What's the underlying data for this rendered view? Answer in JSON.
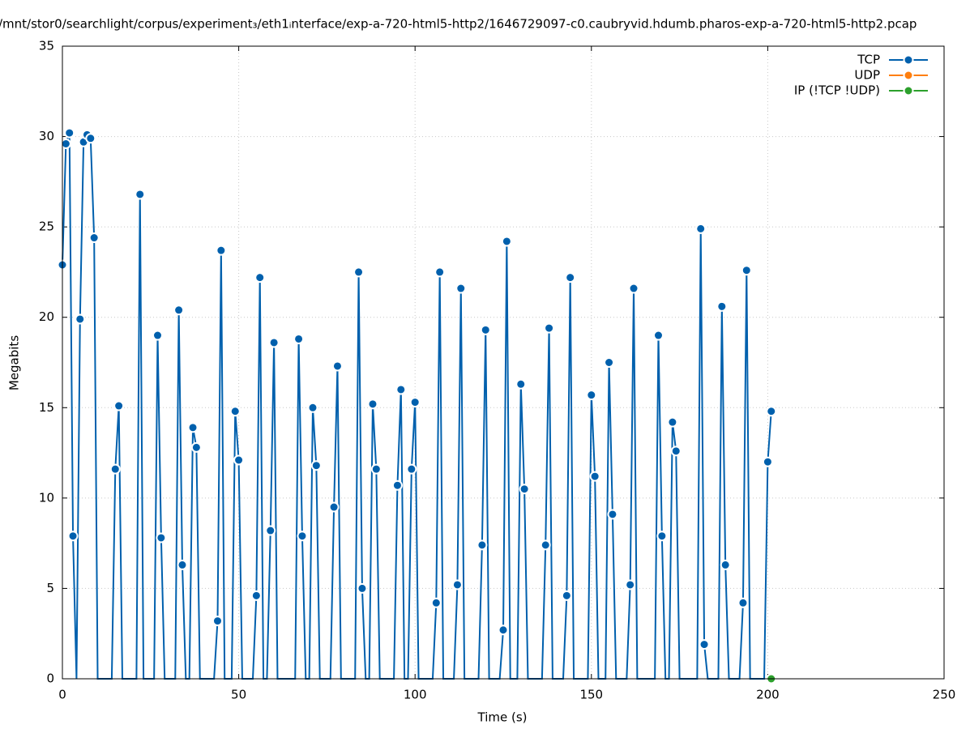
{
  "chart_data": {
    "type": "line",
    "title": "/mnt/stor0/searchlight/corpus/experiment₃/eth1ᵢnterface/exp-a-720-html5-http2/1646729097-c0.caubryvid.hdumb.pharos-exp-a-720-html5-http2.pcap",
    "x_label": "Time (s)",
    "y_label": "Megabits",
    "xlim": [
      0,
      250
    ],
    "xticks": [
      0,
      50,
      100,
      150,
      200,
      250
    ],
    "ylim": [
      0,
      35
    ],
    "yticks": [
      0,
      5,
      10,
      15,
      20,
      25,
      30,
      35
    ],
    "grid": true,
    "legend": "top-right",
    "series": [
      {
        "name": "TCP",
        "color": "#0060ad",
        "x": [
          0,
          1,
          2,
          3,
          4,
          5,
          6,
          7,
          8,
          9,
          10,
          14,
          15,
          16,
          17,
          21,
          22,
          23,
          26,
          27,
          28,
          29,
          32,
          33,
          34,
          35,
          36,
          37,
          38,
          39,
          43,
          44,
          45,
          46,
          48,
          49,
          50,
          51,
          54,
          55,
          56,
          57,
          58,
          59,
          60,
          61,
          66,
          67,
          68,
          69,
          70,
          71,
          72,
          73,
          76,
          77,
          78,
          79,
          83,
          84,
          85,
          86,
          87,
          88,
          89,
          90,
          94,
          95,
          96,
          97,
          98,
          99,
          100,
          101,
          105,
          106,
          107,
          108,
          111,
          112,
          113,
          114,
          118,
          119,
          120,
          121,
          124,
          125,
          126,
          127,
          129,
          130,
          131,
          132,
          136,
          137,
          138,
          139,
          142,
          143,
          144,
          145,
          149,
          150,
          151,
          152,
          154,
          155,
          156,
          157,
          160,
          161,
          162,
          163,
          168,
          169,
          170,
          171,
          172,
          173,
          174,
          175,
          180,
          181,
          182,
          183,
          186,
          187,
          188,
          189,
          192,
          193,
          194,
          195,
          199,
          200,
          201
        ],
        "values": [
          22.9,
          29.6,
          30.2,
          7.9,
          0,
          19.9,
          29.7,
          30.1,
          29.9,
          24.4,
          0,
          0,
          11.6,
          15.1,
          0,
          0,
          26.8,
          0,
          0,
          19.0,
          7.8,
          0,
          0,
          20.4,
          6.3,
          0,
          0,
          13.9,
          12.8,
          0,
          0,
          3.2,
          23.7,
          0,
          0,
          14.8,
          12.1,
          0,
          0,
          4.6,
          22.2,
          0,
          0,
          8.2,
          18.6,
          0,
          0,
          18.8,
          7.9,
          0,
          0,
          15.0,
          11.8,
          0,
          0,
          9.5,
          17.3,
          0,
          0,
          22.5,
          5.0,
          0,
          0,
          15.2,
          11.6,
          0,
          0,
          10.7,
          16.0,
          0,
          0,
          11.6,
          15.3,
          0,
          0,
          4.2,
          22.5,
          0,
          0,
          5.2,
          21.6,
          0,
          0,
          7.4,
          19.3,
          0,
          0,
          2.7,
          24.2,
          0,
          0,
          16.3,
          10.5,
          0,
          0,
          7.4,
          19.4,
          0,
          0,
          4.6,
          22.2,
          0,
          0,
          15.7,
          11.2,
          0,
          0,
          17.5,
          9.1,
          0,
          0,
          5.2,
          21.6,
          0,
          0,
          19.0,
          7.9,
          0,
          0,
          14.2,
          12.6,
          0,
          0,
          24.9,
          1.9,
          0,
          0,
          20.6,
          6.3,
          0,
          0,
          4.2,
          22.6,
          0,
          0,
          12.0,
          14.8
        ]
      },
      {
        "name": "UDP",
        "color": "#ff7f0e",
        "x": [],
        "values": []
      },
      {
        "name": "IP (!TCP  !UDP)",
        "color": "#2ca02c",
        "x": [
          201
        ],
        "values": [
          0
        ]
      }
    ]
  }
}
